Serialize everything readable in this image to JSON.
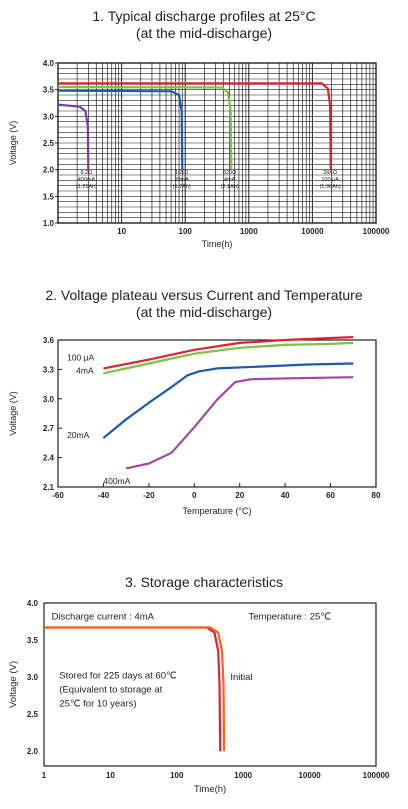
{
  "chart_data": [
    {
      "type": "line",
      "title": "1. Typical discharge profiles at 25°C",
      "subtitle": "(at the mid-discharge)",
      "xlabel": "Time(h)",
      "ylabel": "Voltage (V)",
      "xscale": "log",
      "xlim": [
        1,
        100000
      ],
      "ylim": [
        1.0,
        4.0
      ],
      "x_ticks": [
        {
          "v": 10,
          "label": "10"
        },
        {
          "v": 100,
          "label": "100"
        },
        {
          "v": 1000,
          "label": "1000"
        },
        {
          "v": 10000,
          "label": "10000"
        },
        {
          "v": 100000,
          "label": "100000"
        }
      ],
      "y_ticks": [
        {
          "v": 1.0,
          "label": "1.0"
        },
        {
          "v": 1.5,
          "label": "1.5"
        },
        {
          "v": 2.0,
          "label": "2.0"
        },
        {
          "v": 2.5,
          "label": "2.5"
        },
        {
          "v": 3.0,
          "label": "3.0"
        },
        {
          "v": 3.5,
          "label": "3.5"
        },
        {
          "v": 4.0,
          "label": "4.0"
        }
      ],
      "grid": true,
      "series": [
        {
          "color": "#7b3f98",
          "points": [
            [
              1,
              3.22
            ],
            [
              2.2,
              3.18
            ],
            [
              2.7,
              3.1
            ],
            [
              2.95,
              2.8
            ],
            [
              3.0,
              2.0
            ]
          ],
          "annotation": [
            "8.2Ω",
            "400mA",
            "(1.25Ah)"
          ],
          "label_at": [
            2.8,
            1.92
          ]
        },
        {
          "color": "#1c5aa6",
          "points": [
            [
              1,
              3.48
            ],
            [
              60,
              3.47
            ],
            [
              80,
              3.4
            ],
            [
              88,
              3.1
            ],
            [
              90,
              2.0
            ]
          ],
          "annotation": [
            "165Ω",
            "20mA",
            "(1.7Ah)"
          ],
          "label_at": [
            88,
            1.92
          ]
        },
        {
          "color": "#7dc243",
          "points": [
            [
              1,
              3.55
            ],
            [
              380,
              3.54
            ],
            [
              470,
              3.45
            ],
            [
              520,
              3.1
            ],
            [
              530,
              2.0
            ]
          ],
          "annotation": [
            "820Ω",
            "4mA",
            "(2.1Ah)"
          ],
          "label_at": [
            500,
            1.92
          ]
        },
        {
          "color": "#e0242c",
          "points": [
            [
              1,
              3.62
            ],
            [
              14000,
              3.62
            ],
            [
              17500,
              3.52
            ],
            [
              19000,
              3.2
            ],
            [
              19500,
              2.0
            ]
          ],
          "annotation": [
            "36KΩ",
            "100 μA",
            "(1.96Ah)"
          ],
          "label_at": [
            19000,
            1.92
          ]
        }
      ]
    },
    {
      "type": "line",
      "title": "2. Voltage plateau versus Current and Temperature",
      "subtitle": "(at the mid-discharge)",
      "xlabel": "Temperature (°C)",
      "ylabel": "Voltage (V)",
      "xlim": [
        -60,
        80
      ],
      "ylim": [
        2.1,
        3.6
      ],
      "x_ticks": [
        {
          "v": -60,
          "label": "-60"
        },
        {
          "v": -40,
          "label": "-40"
        },
        {
          "v": -20,
          "label": "-20"
        },
        {
          "v": 0,
          "label": "0"
        },
        {
          "v": 20,
          "label": "20"
        },
        {
          "v": 40,
          "label": "40"
        },
        {
          "v": 60,
          "label": "60"
        },
        {
          "v": 80,
          "label": "80"
        }
      ],
      "y_ticks": [
        {
          "v": 2.1,
          "label": "2.1"
        },
        {
          "v": 2.4,
          "label": "2.4"
        },
        {
          "v": 2.7,
          "label": "2.7"
        },
        {
          "v": 3.0,
          "label": "3.0"
        },
        {
          "v": 3.3,
          "label": "3.3"
        },
        {
          "v": 3.6,
          "label": "3.6"
        }
      ],
      "grid": false,
      "series": [
        {
          "name": "100 μA",
          "color": "#e0242c",
          "points": [
            [
              -40,
              3.31
            ],
            [
              -20,
              3.4
            ],
            [
              0,
              3.5
            ],
            [
              20,
              3.57
            ],
            [
              40,
              3.6
            ],
            [
              60,
              3.62
            ],
            [
              70,
              3.63
            ]
          ],
          "label_at": [
            -56,
            3.39
          ]
        },
        {
          "name": "4mA",
          "color": "#7dc243",
          "points": [
            [
              -40,
              3.26
            ],
            [
              -20,
              3.36
            ],
            [
              0,
              3.46
            ],
            [
              20,
              3.52
            ],
            [
              40,
              3.55
            ],
            [
              60,
              3.56
            ],
            [
              70,
              3.57
            ]
          ],
          "label_at": [
            -52,
            3.26
          ]
        },
        {
          "name": "20mA",
          "color": "#1c5aa6",
          "points": [
            [
              -40,
              2.6
            ],
            [
              -30,
              2.79
            ],
            [
              -20,
              2.96
            ],
            [
              -10,
              3.12
            ],
            [
              -3,
              3.24
            ],
            [
              2,
              3.28
            ],
            [
              10,
              3.31
            ],
            [
              30,
              3.33
            ],
            [
              50,
              3.35
            ],
            [
              70,
              3.36
            ]
          ],
          "label_at": [
            -56,
            2.6
          ]
        },
        {
          "name": "400mA",
          "color": "#9b4b9f",
          "points": [
            [
              -30,
              2.29
            ],
            [
              -20,
              2.34
            ],
            [
              -10,
              2.45
            ],
            [
              0,
              2.71
            ],
            [
              10,
              2.99
            ],
            [
              18,
              3.17
            ],
            [
              25,
              3.2
            ],
            [
              45,
              3.21
            ],
            [
              70,
              3.22
            ]
          ],
          "label_at": [
            -40,
            2.13
          ]
        }
      ]
    },
    {
      "type": "line",
      "title": "3. Storage characteristics",
      "xlabel": "Time(h)",
      "ylabel": "Voltage (V)",
      "xscale": "log",
      "xlim": [
        1,
        100000
      ],
      "ylim": [
        1.8,
        4.0
      ],
      "x_ticks": [
        {
          "v": 1,
          "label": "1"
        },
        {
          "v": 10,
          "label": "10"
        },
        {
          "v": 100,
          "label": "100"
        },
        {
          "v": 1000,
          "label": "1000"
        },
        {
          "v": 10000,
          "label": "10000"
        },
        {
          "v": 100000,
          "label": "100000"
        }
      ],
      "y_ticks": [
        {
          "v": 2.0,
          "label": "2.0"
        },
        {
          "v": 2.5,
          "label": "2.5"
        },
        {
          "v": 3.0,
          "label": "3.0"
        },
        {
          "v": 3.5,
          "label": "3.5"
        },
        {
          "v": 4.0,
          "label": "4.0"
        }
      ],
      "grid": false,
      "notes": [
        {
          "text": "Discharge current : 4mA",
          "at": [
            1.3,
            3.78
          ]
        },
        {
          "text": "Temperature : 25℃",
          "at": [
            1200,
            3.78
          ]
        }
      ],
      "note_block": {
        "lines": [
          "Stored for 225 days at 60℃",
          "(Equivalent to storage at",
          "25℃ for 10 years)"
        ],
        "at": [
          1.7,
          2.98
        ]
      },
      "series": [
        {
          "name": "Stored for 225 days at 60℃",
          "color": "#e0242c",
          "points": [
            [
              1,
              3.67
            ],
            [
              280,
              3.67
            ],
            [
              370,
              3.6
            ],
            [
              420,
              3.35
            ],
            [
              440,
              2.9
            ],
            [
              450,
              2.0
            ]
          ]
        },
        {
          "name": "Initial",
          "color": "#f26522",
          "points": [
            [
              1,
              3.67
            ],
            [
              320,
              3.67
            ],
            [
              420,
              3.6
            ],
            [
              480,
              3.35
            ],
            [
              505,
              2.9
            ],
            [
              515,
              2.0
            ]
          ],
          "label_at": [
            640,
            2.96
          ]
        }
      ]
    }
  ]
}
